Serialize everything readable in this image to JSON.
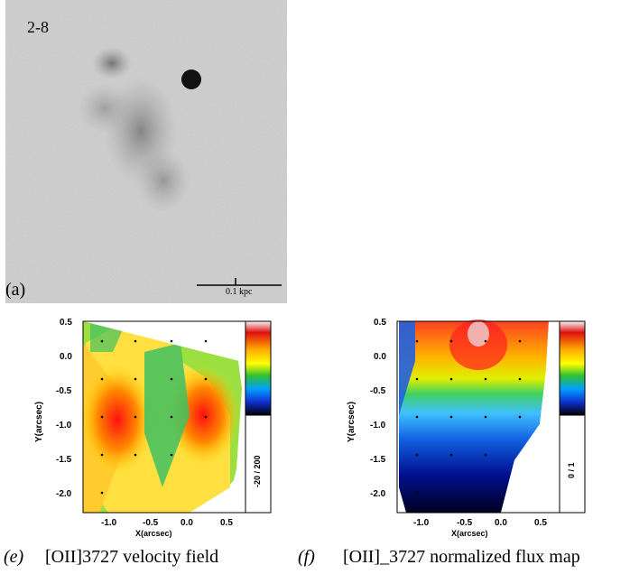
{
  "panel_a": {
    "object_id": "2-8",
    "panel_letter": "(a)",
    "scale_label": "0.1 kpc"
  },
  "panel_e": {
    "letter": "(e)",
    "caption": "[OII]3727 velocity field",
    "colorbar_label": "-20 / 200",
    "ylabel": "Y(arcsec)",
    "xlabel": "X(arcsec)",
    "yticks": [
      "0.5",
      "0.0",
      "-0.5",
      "-1.0",
      "-1.5",
      "-2.0"
    ],
    "xticks": [
      "-1.0",
      "-0.5",
      "0.0",
      "0.5"
    ]
  },
  "panel_f": {
    "letter": "(f)",
    "caption": "[OII]_3727 normalized flux map",
    "colorbar_label": "0 / 1",
    "ylabel": "Y(arcsec)",
    "xlabel": "X(arcsec)",
    "yticks": [
      "0.5",
      "0.0",
      "-0.5",
      "-1.0",
      "-1.5",
      "-2.0"
    ],
    "xticks": [
      "-1.0",
      "-0.5",
      "0.0",
      "0.5"
    ]
  }
}
